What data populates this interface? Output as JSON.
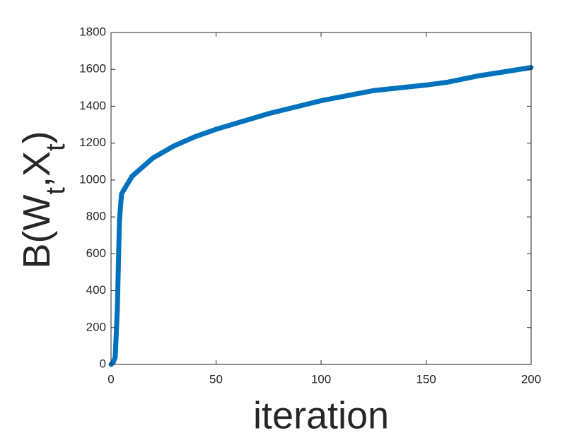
{
  "chart_data": {
    "type": "line",
    "xlabel": "iteration",
    "ylabel": [
      {
        "text": "B(W",
        "subscript": false
      },
      {
        "text": "t",
        "subscript": true
      },
      {
        "text": ",X",
        "subscript": false
      },
      {
        "text": "t",
        "subscript": true
      },
      {
        "text": ")",
        "subscript": false
      }
    ],
    "x": [
      0,
      1,
      2,
      3,
      4,
      5,
      10,
      20,
      30,
      40,
      50,
      75,
      100,
      125,
      150,
      160,
      175,
      200
    ],
    "values": [
      0,
      10,
      40,
      300,
      780,
      925,
      1020,
      1120,
      1185,
      1235,
      1275,
      1360,
      1430,
      1485,
      1515,
      1530,
      1565,
      1610
    ],
    "color": "#0072bd",
    "xlim": [
      0,
      200
    ],
    "xticks": [
      0,
      50,
      100,
      150,
      200
    ],
    "ylim": [
      0,
      1800
    ],
    "yticks": [
      0,
      200,
      400,
      600,
      800,
      1000,
      1200,
      1400,
      1600,
      1800
    ],
    "box": true
  }
}
